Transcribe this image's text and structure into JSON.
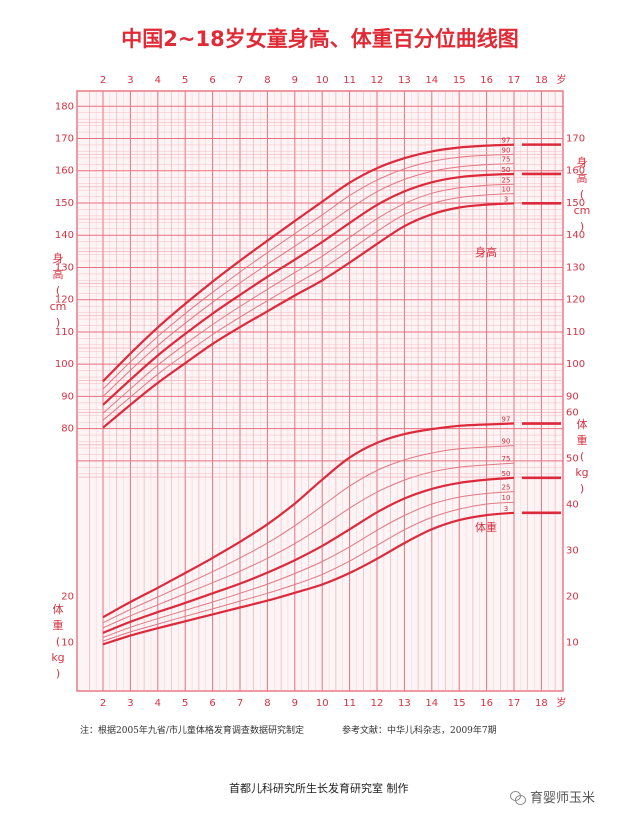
{
  "chart_data": {
    "type": "line",
    "title": "中国2~18岁女童身高、体重百分位曲线图",
    "age_unit": "岁",
    "age_ticks": [
      2,
      3,
      4,
      5,
      6,
      7,
      8,
      9,
      10,
      11,
      12,
      13,
      14,
      15,
      16,
      17,
      18
    ],
    "height_axis": {
      "label_chars": [
        "身",
        "高",
        "(",
        "cm",
        ")"
      ],
      "range": [
        80,
        180
      ],
      "left_ticks": [
        80,
        90,
        100,
        110,
        120,
        130,
        140,
        150,
        160,
        170,
        180
      ],
      "right_ticks": [
        90,
        100,
        110,
        120,
        130,
        140,
        150,
        160,
        170
      ]
    },
    "weight_axis": {
      "label_chars": [
        "体",
        "重",
        "(",
        "kg",
        ")"
      ],
      "left_ticks": [
        10,
        20
      ],
      "right_ticks": [
        10,
        20,
        30,
        40,
        50,
        60
      ]
    },
    "x": [
      2,
      3,
      4,
      5,
      6,
      7,
      8,
      9,
      10,
      11,
      12,
      13,
      14,
      15,
      16,
      17
    ],
    "height_series": [
      {
        "name": "3",
        "values": [
          80.3,
          87.4,
          94.2,
          100.3,
          106.3,
          111.5,
          116.4,
          121.3,
          126.0,
          131.5,
          137.3,
          142.8,
          146.5,
          148.6,
          149.5,
          149.9
        ]
      },
      {
        "name": "10",
        "values": [
          82.6,
          89.8,
          96.9,
          103.2,
          109.2,
          114.6,
          119.7,
          124.7,
          129.6,
          135.3,
          141.2,
          146.4,
          149.8,
          151.7,
          152.5,
          152.9
        ]
      },
      {
        "name": "25",
        "values": [
          84.8,
          92.3,
          99.7,
          106.2,
          112.3,
          117.9,
          123.2,
          128.4,
          133.5,
          139.3,
          145.1,
          149.8,
          153.0,
          154.7,
          155.5,
          155.8
        ]
      },
      {
        "name": "50",
        "values": [
          87.4,
          95.2,
          102.7,
          109.4,
          115.7,
          121.5,
          127.1,
          132.4,
          137.9,
          143.8,
          149.4,
          153.6,
          156.4,
          158.0,
          158.7,
          159.0
        ]
      },
      {
        "name": "75",
        "values": [
          90.0,
          98.1,
          105.8,
          112.7,
          119.2,
          125.2,
          131.0,
          136.6,
          142.3,
          148.2,
          153.5,
          157.3,
          159.8,
          161.2,
          161.9,
          162.2
        ]
      },
      {
        "name": "90",
        "values": [
          92.3,
          100.7,
          108.6,
          115.7,
          122.3,
          128.6,
          134.6,
          140.5,
          146.3,
          152.3,
          157.1,
          160.6,
          162.9,
          164.2,
          164.8,
          165.1
        ]
      },
      {
        "name": "97",
        "values": [
          94.7,
          103.3,
          111.4,
          118.7,
          125.6,
          132.1,
          138.3,
          144.4,
          150.4,
          156.3,
          160.8,
          163.9,
          166.0,
          167.2,
          167.8,
          168.1
        ]
      }
    ],
    "weight_series": [
      {
        "name": "3",
        "values": [
          9.6,
          11.5,
          13.1,
          14.6,
          16.1,
          17.6,
          19.1,
          20.8,
          22.6,
          25.1,
          28.2,
          31.6,
          34.6,
          36.6,
          37.7,
          38.2
        ]
      },
      {
        "name": "10",
        "values": [
          10.3,
          12.3,
          14.0,
          15.7,
          17.3,
          19.0,
          20.7,
          22.6,
          24.8,
          27.7,
          31.1,
          34.5,
          37.2,
          39.0,
          40.1,
          40.5
        ]
      },
      {
        "name": "25",
        "values": [
          11.1,
          13.3,
          15.2,
          17.0,
          18.8,
          20.7,
          22.7,
          25.0,
          27.6,
          30.8,
          34.4,
          37.6,
          40.1,
          41.6,
          42.4,
          42.8
        ]
      },
      {
        "name": "50",
        "values": [
          12.1,
          14.5,
          16.6,
          18.6,
          20.7,
          22.8,
          25.2,
          27.9,
          31.0,
          34.6,
          38.3,
          41.3,
          43.4,
          44.7,
          45.4,
          45.8
        ]
      },
      {
        "name": "75",
        "values": [
          13.2,
          15.8,
          18.2,
          20.6,
          23.0,
          25.5,
          28.3,
          31.5,
          35.2,
          39.2,
          42.7,
          45.3,
          47.1,
          48.1,
          48.6,
          49.0
        ]
      },
      {
        "name": "90",
        "values": [
          14.3,
          17.2,
          19.9,
          22.6,
          25.4,
          28.4,
          31.6,
          35.4,
          39.7,
          44.0,
          47.4,
          49.7,
          51.2,
          52.1,
          52.5,
          52.8
        ]
      },
      {
        "name": "97",
        "values": [
          15.5,
          18.8,
          21.9,
          25.1,
          28.4,
          31.9,
          35.7,
          40.2,
          45.4,
          50.2,
          53.4,
          55.3,
          56.4,
          57.1,
          57.4,
          57.6
        ]
      }
    ],
    "curve_labels": {
      "height": "身高",
      "weight": "体重"
    },
    "colors": {
      "grid": "#f2a6b0",
      "major": "#e9707f",
      "curve": "#dc2a3c",
      "thin_curve": "#e07884"
    }
  },
  "footer": {
    "note": "注：根据2005年九省/市儿童体格发育调查数据研究制定",
    "reference": "参考文献：中华儿科杂志，2009年7期",
    "credit": "首都儿科研究所生长发育研究室 制作",
    "watermark": "育婴师玉米"
  }
}
